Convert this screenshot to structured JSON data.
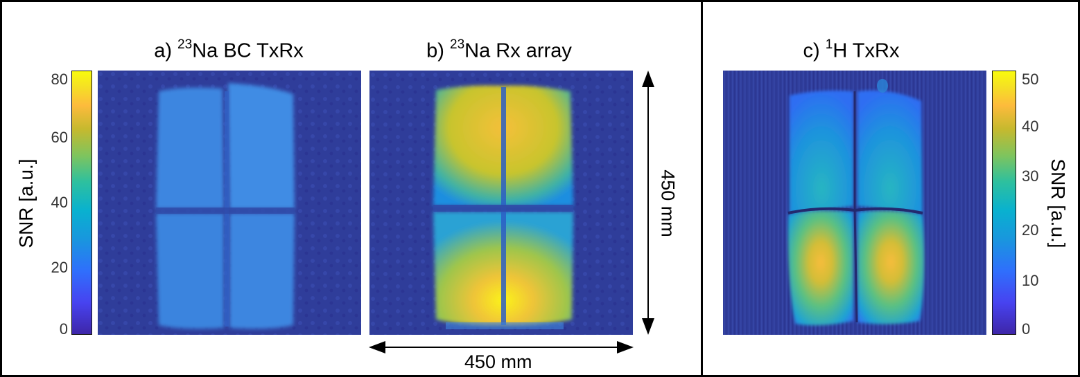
{
  "panels": [
    {
      "title_prefix": "a) ",
      "isotope_mass": "23",
      "title_suffix": "Na BC TxRx"
    },
    {
      "title_prefix": "b) ",
      "isotope_mass": "23",
      "title_suffix": "Na Rx array"
    },
    {
      "title_prefix": "c) ",
      "isotope_mass": "1",
      "title_suffix": "H TxRx"
    }
  ],
  "colorbar_left": {
    "label": "SNR [a.u.]",
    "ticks": [
      "80",
      "60",
      "40",
      "20",
      "0"
    ],
    "range": [
      0,
      80
    ]
  },
  "colorbar_right": {
    "label": "SNR [a.u.]",
    "ticks": [
      "50",
      "40",
      "30",
      "20",
      "10",
      "0"
    ],
    "range": [
      0,
      50
    ]
  },
  "dimensions": {
    "vertical": "450 mm",
    "horizontal": "450 mm"
  },
  "colormap": "parula",
  "colors": {
    "background_dark_blue": "#2f3d9a",
    "low": "#3e26a8",
    "mid": "#13beb8",
    "high": "#f9fb0e",
    "frame": "#000000"
  }
}
